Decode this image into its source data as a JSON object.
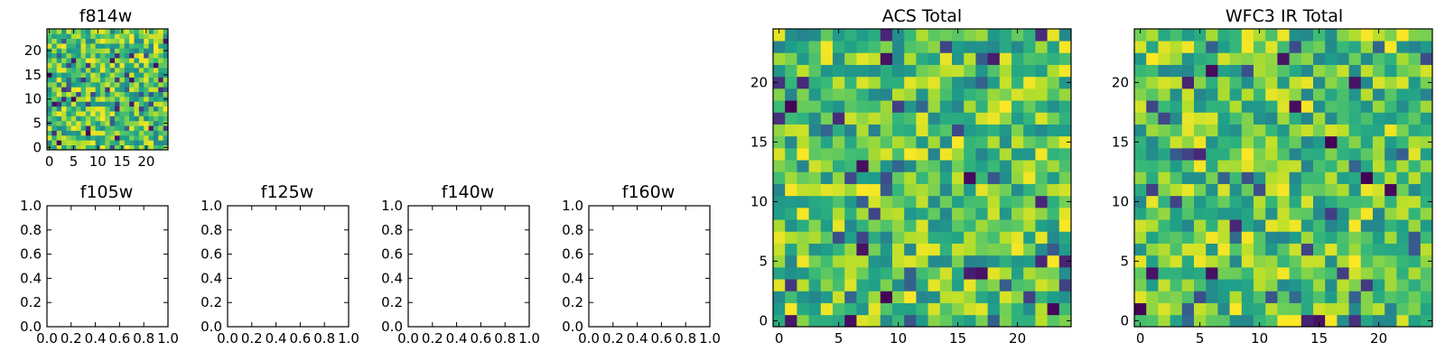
{
  "chart_data": [
    {
      "type": "heatmap",
      "title": "f814w",
      "colormap": "viridis",
      "rows": 25,
      "cols": 25,
      "xlim": [
        -0.5,
        24.5
      ],
      "ylim": [
        -0.5,
        24.5
      ],
      "xticks": [
        0,
        5,
        10,
        15,
        20
      ],
      "yticks": [
        0,
        5,
        10,
        15,
        20
      ],
      "seed": 814
    },
    {
      "type": "empty",
      "title": "f105w",
      "xlim": [
        0,
        1
      ],
      "ylim": [
        0,
        1
      ],
      "xticks": [
        "0.0",
        "0.2",
        "0.4",
        "0.6",
        "0.8",
        "1.0"
      ],
      "yticks": [
        "0.0",
        "0.2",
        "0.4",
        "0.6",
        "0.8",
        "1.0"
      ]
    },
    {
      "type": "empty",
      "title": "f125w",
      "xlim": [
        0,
        1
      ],
      "ylim": [
        0,
        1
      ],
      "xticks": [
        "0.0",
        "0.2",
        "0.4",
        "0.6",
        "0.8",
        "1.0"
      ],
      "yticks": [
        "0.0",
        "0.2",
        "0.4",
        "0.6",
        "0.8",
        "1.0"
      ]
    },
    {
      "type": "empty",
      "title": "f140w",
      "xlim": [
        0,
        1
      ],
      "ylim": [
        0,
        1
      ],
      "xticks": [
        "0.0",
        "0.2",
        "0.4",
        "0.6",
        "0.8",
        "1.0"
      ],
      "yticks": [
        "0.0",
        "0.2",
        "0.4",
        "0.6",
        "0.8",
        "1.0"
      ]
    },
    {
      "type": "empty",
      "title": "f160w",
      "xlim": [
        0,
        1
      ],
      "ylim": [
        0,
        1
      ],
      "xticks": [
        "0.0",
        "0.2",
        "0.4",
        "0.6",
        "0.8",
        "1.0"
      ],
      "yticks": [
        "0.0",
        "0.2",
        "0.4",
        "0.6",
        "0.8",
        "1.0"
      ]
    },
    {
      "type": "heatmap",
      "title": "ACS Total",
      "colormap": "viridis",
      "rows": 25,
      "cols": 25,
      "xlim": [
        -0.5,
        24.5
      ],
      "ylim": [
        -0.5,
        24.5
      ],
      "xticks": [
        0,
        5,
        10,
        15,
        20
      ],
      "yticks": [
        0,
        5,
        10,
        15,
        20
      ],
      "seed": 2711
    },
    {
      "type": "heatmap",
      "title": "WFC3 IR Total",
      "colormap": "viridis",
      "rows": 25,
      "cols": 25,
      "xlim": [
        -0.5,
        24.5
      ],
      "ylim": [
        -0.5,
        24.5
      ],
      "xticks": [
        0,
        5,
        10,
        15,
        20
      ],
      "yticks": [
        0,
        5,
        10,
        15,
        20
      ],
      "seed": 3141
    }
  ]
}
